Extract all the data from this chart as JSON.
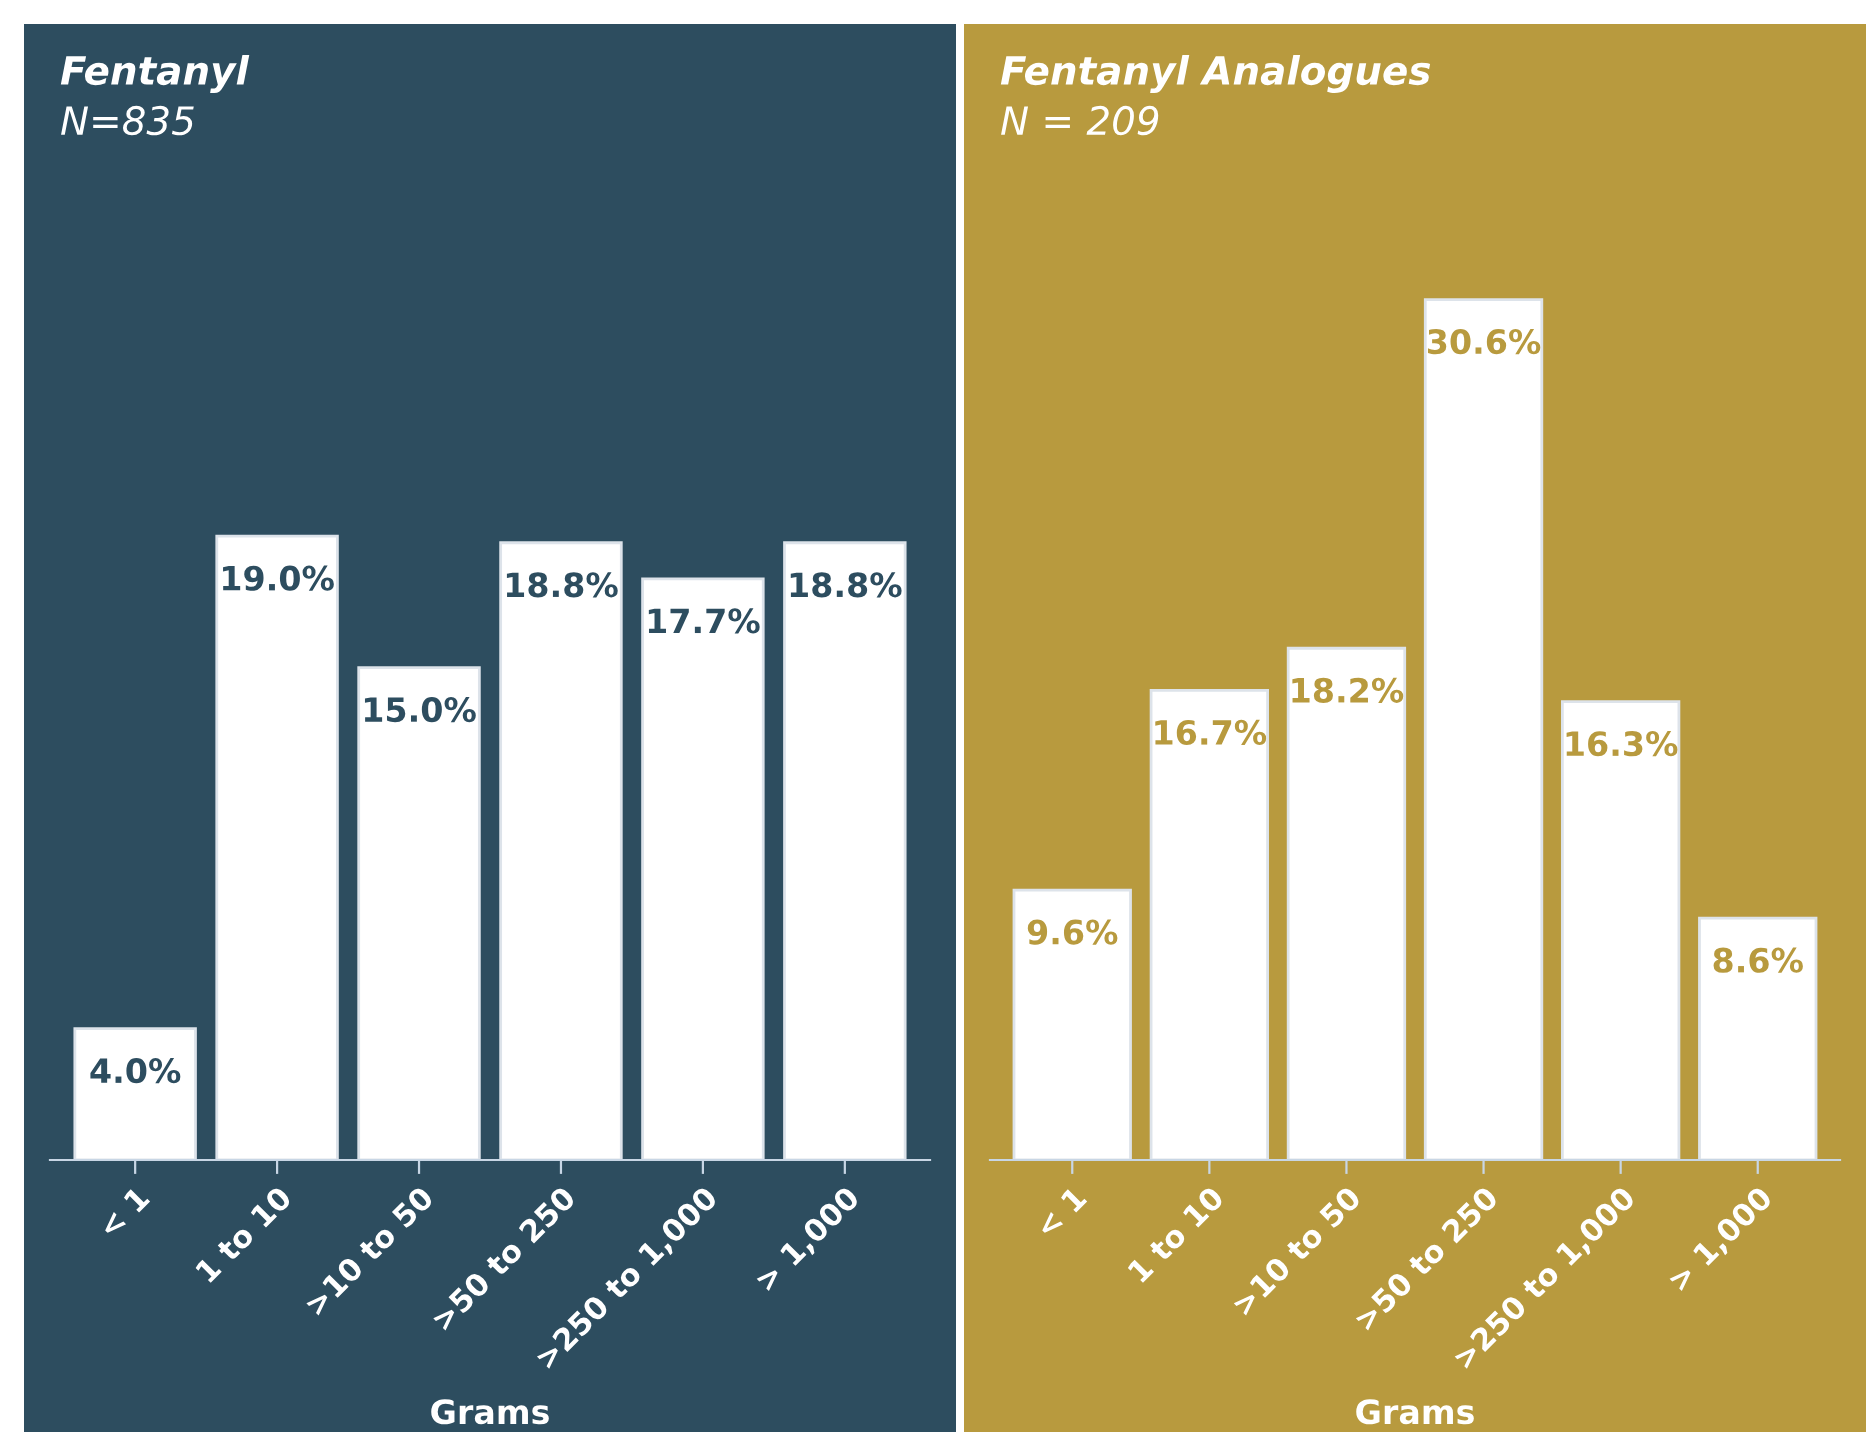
{
  "chart_data": [
    {
      "type": "bar",
      "title": "Fentanyl",
      "subtitle": "N=835",
      "xlabel": "Grams",
      "categories": [
        "< 1",
        "1 to 10",
        ">10 to 50",
        ">50 to 250",
        ">250 to 1,000",
        "> 1,000"
      ],
      "color": "#ffffff",
      "values": [
        4.0,
        19.0,
        15.0,
        18.8,
        17.7,
        18.8
      ],
      "value_labels": [
        "4.0%",
        "19.0%",
        "15.0%",
        "18.8%",
        "17.7%",
        "18.8%"
      ],
      "ylim": [
        0,
        34.6
      ],
      "tick_labels": "x",
      "grid": false,
      "legend": false
    },
    {
      "type": "bar",
      "title": "Fentanyl Analogues",
      "subtitle": "N = 209",
      "xlabel": "Grams",
      "categories": [
        "< 1",
        "1 to 10",
        ">10 to 50",
        ">50 to 250",
        ">250 to 1,000",
        "> 1,000"
      ],
      "color": "#ffffff",
      "values": [
        9.6,
        16.7,
        18.2,
        30.6,
        16.3,
        8.6
      ],
      "value_labels": [
        "9.6%",
        "16.7%",
        "18.2%",
        "30.6%",
        "16.3%",
        "8.6%"
      ],
      "ylim": [
        0,
        40.4
      ],
      "tick_labels": "x",
      "grid": false,
      "legend": false
    }
  ]
}
